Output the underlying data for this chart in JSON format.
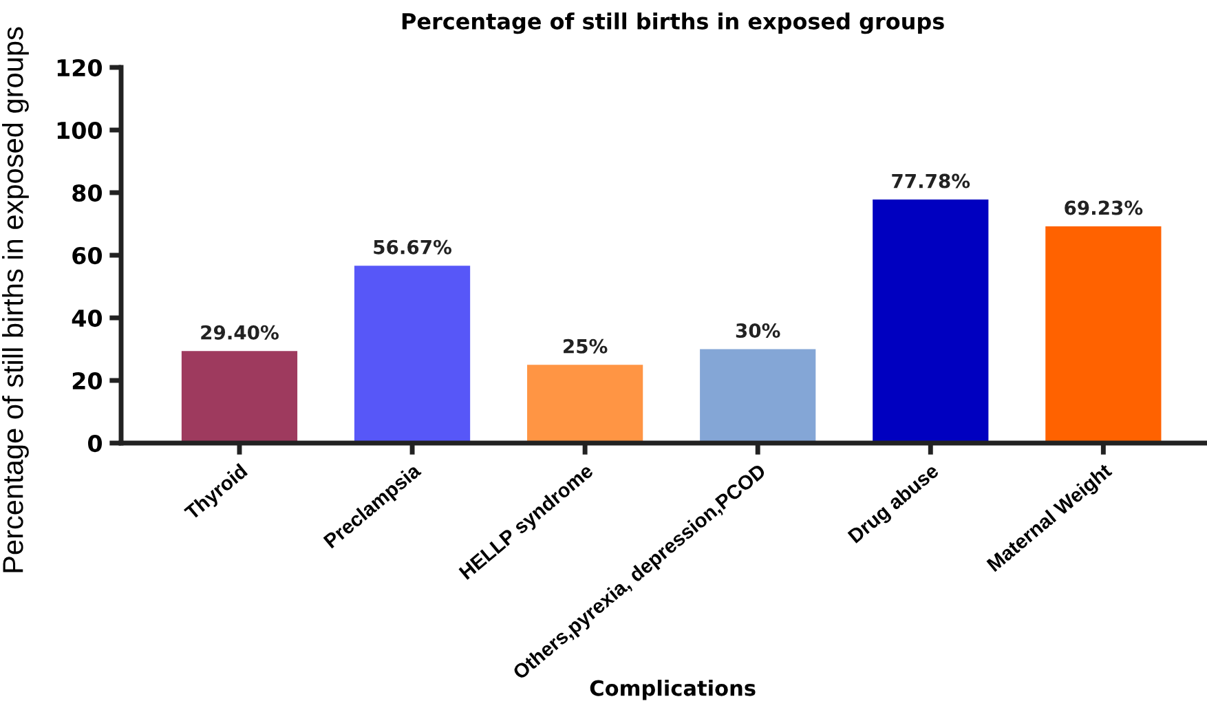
{
  "chart_data": {
    "type": "bar",
    "title": "Percentage of still births in exposed groups",
    "xlabel": "Complications",
    "ylabel": "Percentage of still births in exposed groups",
    "categories": [
      "Thyroid",
      "Preclampsia",
      "HELLP syndrome",
      "Others,pyrexia, depression,PCOD",
      "Drug abuse",
      "Maternal Weight"
    ],
    "values": [
      29.4,
      56.67,
      25,
      30,
      77.78,
      69.23
    ],
    "colors": [
      "#9e3a5e",
      "#5757f8",
      "#ff9544",
      "#84a6d6",
      "#0000c0",
      "#ff6200"
    ],
    "value_labels": [
      "29.40%",
      "56.67%",
      "25%",
      "30%",
      "77.78%",
      "69.23%"
    ],
    "ylim": [
      0,
      120
    ],
    "yticks": [
      0,
      20,
      40,
      60,
      80,
      100,
      120
    ],
    "grid": false,
    "legend": false
  }
}
